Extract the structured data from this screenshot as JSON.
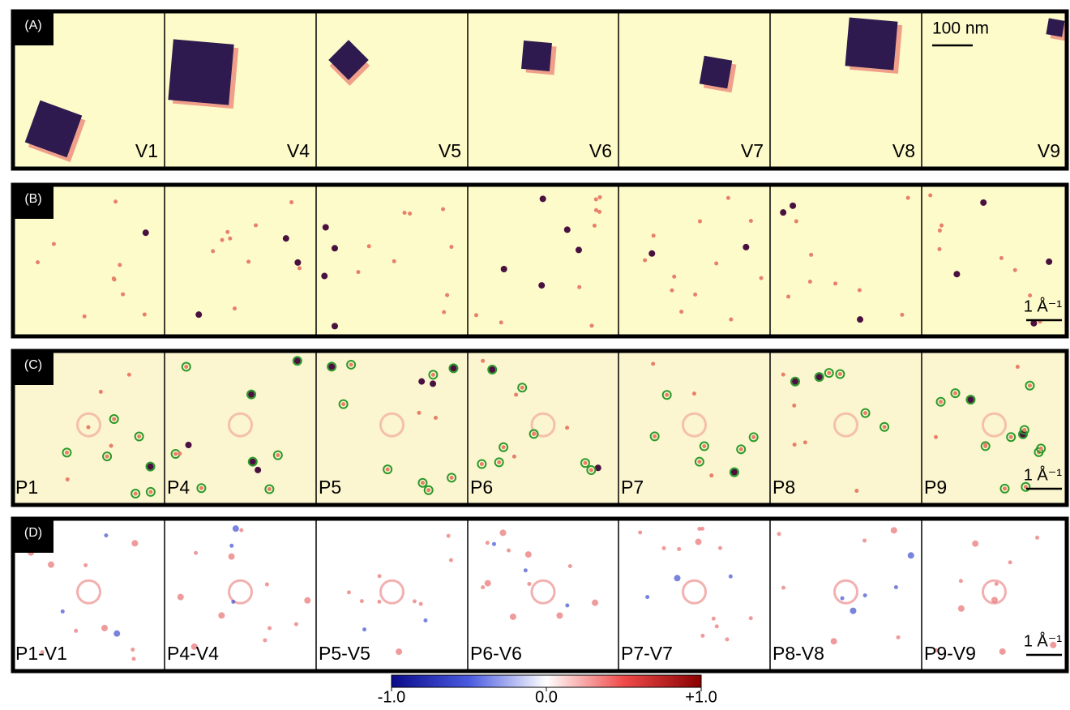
{
  "rows": [
    {
      "label": "(A)",
      "panels": [
        "V1",
        "V4",
        "V5",
        "V6",
        "V7",
        "V8",
        "V9"
      ],
      "scale_bar": "100 nm"
    },
    {
      "label": "(B)",
      "panels": [],
      "scale_bar": "1 Å⁻¹"
    },
    {
      "label": "(C)",
      "panels": [
        "P1",
        "P4",
        "P5",
        "P6",
        "P7",
        "P8",
        "P9"
      ],
      "scale_bar": "1 Å⁻¹"
    },
    {
      "label": "(D)",
      "panels": [
        "P1-V1",
        "P4-V4",
        "P5-V5",
        "P6-V6",
        "P7-V7",
        "P8-V8",
        "P9-V9"
      ],
      "scale_bar": "1 Å⁻¹"
    }
  ],
  "colorbar": {
    "lim": [
      -1,
      1
    ],
    "ticks": [
      {
        "value": -1,
        "label": "-1.0"
      },
      {
        "value": 0,
        "label": "0.0"
      },
      {
        "value": 1,
        "label": "+1.0"
      }
    ]
  }
}
